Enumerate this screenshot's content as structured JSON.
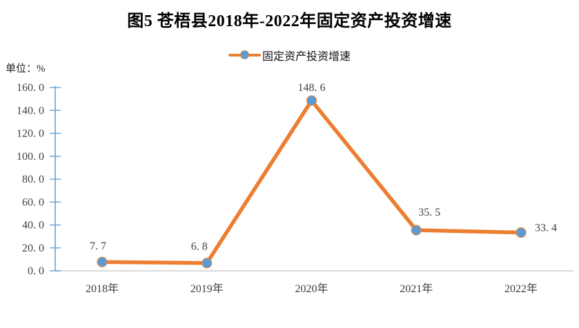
{
  "title": "图5 苍梧县2018年-2022年固定资产投资增速",
  "unit_label": "单位：%",
  "legend": {
    "label": "固定资产投资增速"
  },
  "chart_data": {
    "type": "line",
    "title": "图5 苍梧县2018年-2022年固定资产投资增速",
    "unit": "单位：%",
    "categories": [
      "2018年",
      "2019年",
      "2020年",
      "2021年",
      "2022年"
    ],
    "series": [
      {
        "name": "固定资产投资增速",
        "values": [
          7.7,
          6.8,
          148.6,
          35.5,
          33.4
        ]
      }
    ],
    "data_labels": [
      "7.7",
      "6.8",
      "148.6",
      "35.5",
      "33.4"
    ],
    "xlabel": "",
    "ylabel": "",
    "ylim": [
      0,
      160
    ],
    "ytick_step": 20,
    "ytick_labels": [
      "0.0",
      "20.0",
      "40.0",
      "60.0",
      "80.0",
      "100.0",
      "120.0",
      "140.0",
      "160.0"
    ],
    "grid": false,
    "legend_position": "top-center",
    "colors": {
      "line": "#ED7D31",
      "marker_fill": "#5B9BD5",
      "marker_stroke": "#e08a4a",
      "axis": "#5B9BD5",
      "baseline": "#D9D9D9",
      "tick_text": "#3f3f3f",
      "label_text": "#3f3f3f",
      "title_text": "#000000"
    }
  }
}
